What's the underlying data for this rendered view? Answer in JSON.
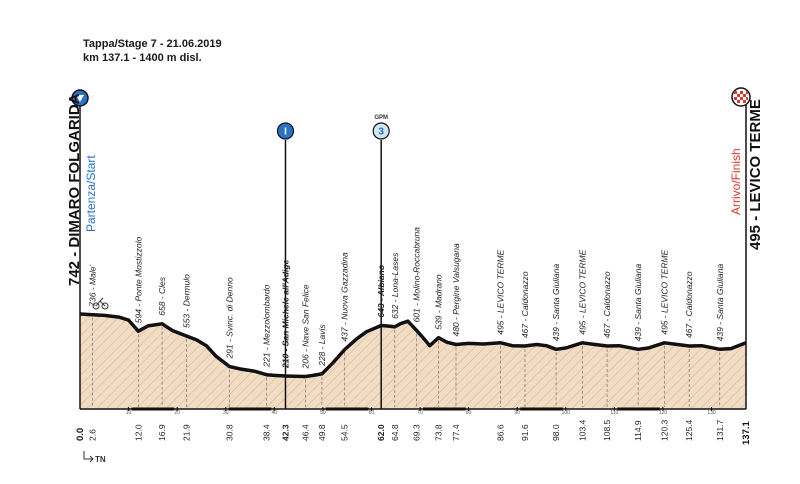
{
  "header": {
    "line1": "Tappa/Stage 7 - 21.06.2019",
    "line2": "km 137.1 - 1400 m disl."
  },
  "start": {
    "name": "742 - DIMARO FOLGARIDA",
    "label": "Partenza/Start"
  },
  "finish": {
    "name": "495 - LEVICO TERME",
    "label": "Arrivo/Finish"
  },
  "markers": [
    {
      "km": 42.3,
      "symbol": "I",
      "type": "intermediate sprint"
    },
    {
      "km": 62.0,
      "symbol": "3",
      "type": "gpm",
      "tag": "GPM"
    }
  ],
  "footer_mark": "TN",
  "colors": {
    "fill": "#f3dcc4",
    "hatch": "#c9a98a",
    "line": "#111111",
    "start": "#2a72c4",
    "finish": "#d63b2f"
  },
  "chart_data": {
    "type": "area",
    "title": "",
    "xlabel": "km",
    "ylabel": "m",
    "xlim": [
      0,
      137.1
    ],
    "ylim": [
      100,
      900
    ],
    "x_axis_ticks": [
      10,
      20,
      30,
      40,
      50,
      60,
      70,
      80,
      90,
      100,
      110,
      120,
      130
    ],
    "waypoints": [
      {
        "km": "2.6",
        "label": "736 - Male'",
        "alt": 736
      },
      {
        "km": "12.0",
        "label": "594 - Ponte Mostizzolo",
        "alt": 594
      },
      {
        "km": "16.9",
        "label": "658 - Cles",
        "alt": 658
      },
      {
        "km": "21.9",
        "label": "553 - Dermulo",
        "alt": 553
      },
      {
        "km": "30.8",
        "label": "291 - Svinc. di Denno",
        "alt": 291
      },
      {
        "km": "38.4",
        "label": "221 - Mezzolombardo",
        "alt": 221
      },
      {
        "km": "42.3",
        "label": "210 - San Michele all'Adige",
        "alt": 210,
        "bold": true
      },
      {
        "km": "46.4",
        "label": "206 - Nave San Felice",
        "alt": 206
      },
      {
        "km": "49.8",
        "label": "228 - Lavis",
        "alt": 228
      },
      {
        "km": "54.5",
        "label": "437 - Nuova Gazzadina",
        "alt": 437
      },
      {
        "km": "62.0",
        "label": "643 - Albiano",
        "alt": 643,
        "bold": true
      },
      {
        "km": "64.8",
        "label": "632 - Lona-Lases",
        "alt": 632
      },
      {
        "km": "69.3",
        "label": "601 - Molino-Roccabruna",
        "alt": 601
      },
      {
        "km": "73.8",
        "label": "539 - Madrano",
        "alt": 539
      },
      {
        "km": "77.4",
        "label": "480 - Pergine Valsugana",
        "alt": 480
      },
      {
        "km": "86.6",
        "label": "495 - LEVICO TERME",
        "alt": 495
      },
      {
        "km": "91.6",
        "label": "467 - Caldonazzo",
        "alt": 467
      },
      {
        "km": "98.0",
        "label": "439 - Santa Giuliana",
        "alt": 439
      },
      {
        "km": "103.4",
        "label": "495 - LEVICO TERME",
        "alt": 495
      },
      {
        "km": "108.5",
        "label": "467 - Caldonazzo",
        "alt": 467
      },
      {
        "km": "114.9",
        "label": "439 - Santa Giuliana",
        "alt": 439
      },
      {
        "km": "120.3",
        "label": "495 - LEVICO TERME",
        "alt": 495
      },
      {
        "km": "125.4",
        "label": "467 - Caldonazzo",
        "alt": 467
      },
      {
        "km": "131.7",
        "label": "439 - Santa Giuliana",
        "alt": 439
      }
    ],
    "start_km": "0.0",
    "finish_km": "137.1",
    "profile": [
      [
        0,
        742
      ],
      [
        2.6,
        736
      ],
      [
        5,
        730
      ],
      [
        8,
        715
      ],
      [
        10,
        690
      ],
      [
        12,
        594
      ],
      [
        14,
        640
      ],
      [
        16.9,
        658
      ],
      [
        19,
        600
      ],
      [
        21.9,
        553
      ],
      [
        24,
        520
      ],
      [
        26,
        470
      ],
      [
        28,
        380
      ],
      [
        30.8,
        291
      ],
      [
        33,
        270
      ],
      [
        36,
        250
      ],
      [
        38.4,
        221
      ],
      [
        40,
        215
      ],
      [
        42.3,
        210
      ],
      [
        44,
        208
      ],
      [
        46.4,
        206
      ],
      [
        48,
        215
      ],
      [
        49.8,
        228
      ],
      [
        52,
        320
      ],
      [
        54.5,
        437
      ],
      [
        57,
        530
      ],
      [
        59,
        590
      ],
      [
        62.0,
        643
      ],
      [
        63,
        640
      ],
      [
        64.8,
        632
      ],
      [
        66,
        660
      ],
      [
        67.5,
        680
      ],
      [
        69.3,
        601
      ],
      [
        71,
        520
      ],
      [
        72,
        470
      ],
      [
        73.8,
        539
      ],
      [
        75.5,
        500
      ],
      [
        77.4,
        480
      ],
      [
        80,
        490
      ],
      [
        83,
        485
      ],
      [
        86.6,
        495
      ],
      [
        89,
        470
      ],
      [
        91.6,
        467
      ],
      [
        94,
        480
      ],
      [
        96,
        470
      ],
      [
        98.0,
        439
      ],
      [
        100,
        450
      ],
      [
        103.4,
        495
      ],
      [
        106,
        480
      ],
      [
        108.5,
        467
      ],
      [
        111,
        470
      ],
      [
        114.9,
        439
      ],
      [
        117,
        450
      ],
      [
        120.3,
        495
      ],
      [
        123,
        480
      ],
      [
        125.4,
        467
      ],
      [
        128,
        470
      ],
      [
        131.7,
        439
      ],
      [
        134,
        445
      ],
      [
        137.1,
        495
      ]
    ]
  }
}
